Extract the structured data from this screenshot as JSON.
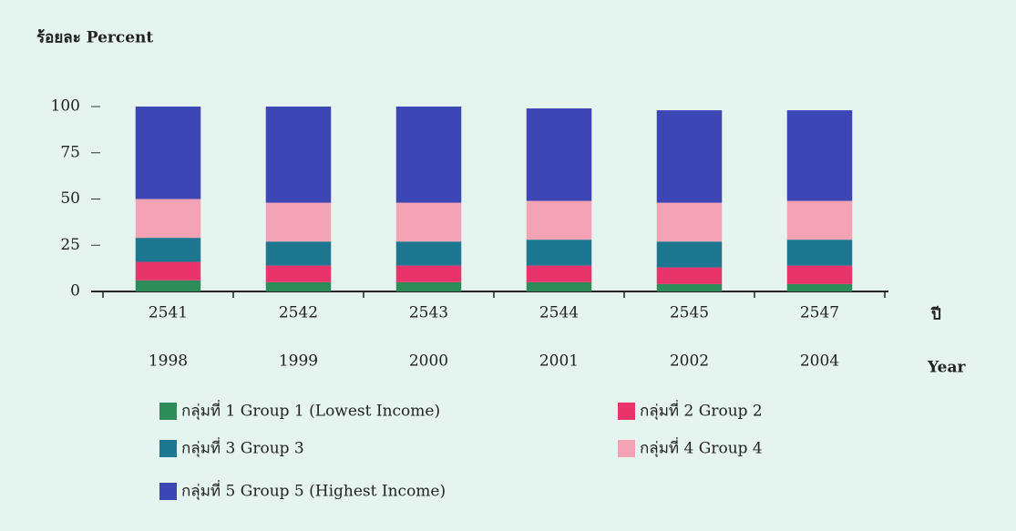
{
  "chart_data": {
    "type": "stacked-bar",
    "title": "ร้อยละ  Percent",
    "categories": [
      "2541",
      "2542",
      "2543",
      "2544",
      "2545",
      "2547"
    ],
    "categories_en": [
      "1998",
      "1999",
      "2000",
      "2001",
      "2002",
      "2004"
    ],
    "x_label": "ปี",
    "x_label_en": "Year",
    "series": [
      {
        "name": "กลุ่มที่ 1  Group 1 (Lowest Income)",
        "color": "#2e8b5a",
        "values": [
          6,
          5,
          5,
          5,
          4,
          4
        ]
      },
      {
        "name": "กลุ่มที่ 2  Group 2",
        "color": "#e8336b",
        "values": [
          10,
          9,
          9,
          9,
          9,
          10
        ]
      },
      {
        "name": "กลุ่มที่ 3  Group 3",
        "color": "#1d7790",
        "values": [
          13,
          13,
          13,
          14,
          14,
          14
        ]
      },
      {
        "name": "กลุ่มที่ 4  Group 4",
        "color": "#f3a3b3",
        "values": [
          21,
          21,
          21,
          21,
          21,
          21
        ]
      },
      {
        "name": "กลุ่มที่ 5  Group 5 (Highest Income)",
        "color": "#3d46b5",
        "values": [
          50,
          52,
          52,
          50,
          50,
          49
        ]
      }
    ],
    "ylim": [
      0,
      100
    ],
    "yticks": [
      0,
      25,
      50,
      75,
      100
    ]
  }
}
